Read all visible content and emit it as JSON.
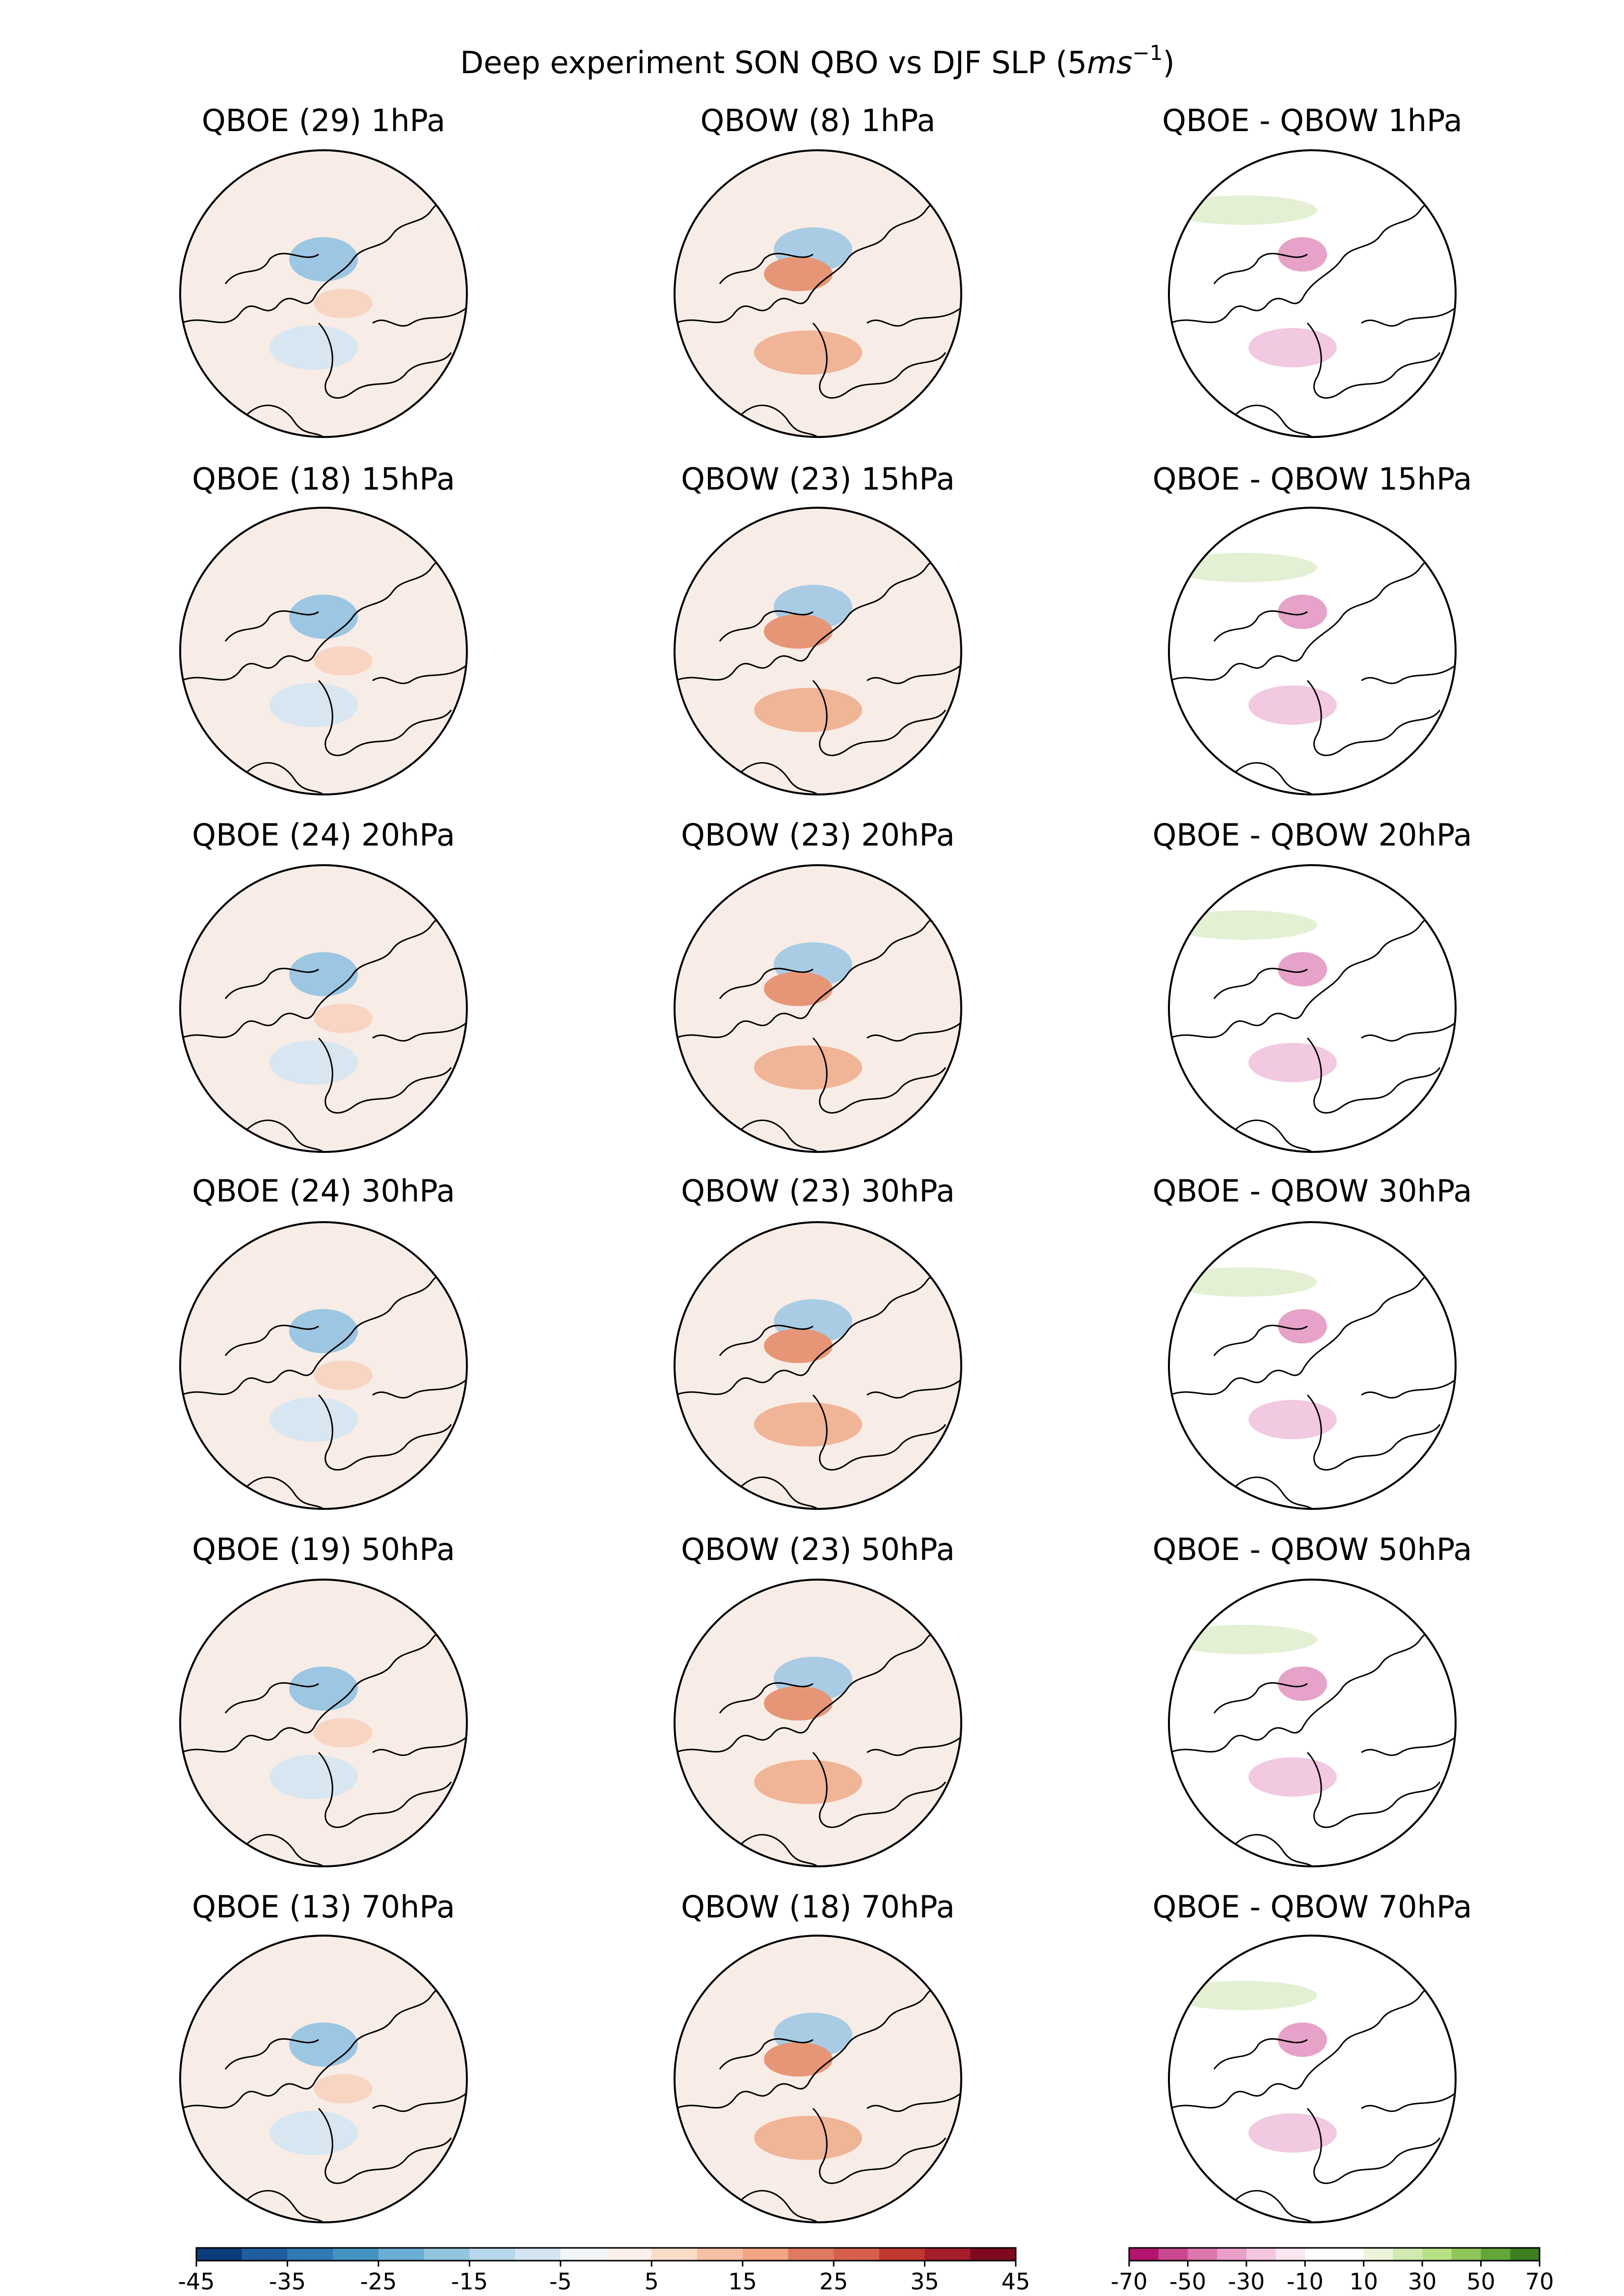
{
  "title": {
    "text": "Deep experiment SON QBO vs DJF SLP (5",
    "unit": "ms",
    "exponent": "−1",
    "close": ")"
  },
  "panels": [
    [
      "QBOE (29) 1hPa",
      "QBOW (8) 1hPa",
      "QBOE - QBOW 1hPa"
    ],
    [
      "QBOE (18) 15hPa",
      "QBOW (23) 15hPa",
      "QBOE - QBOW 15hPa"
    ],
    [
      "QBOE (24) 20hPa",
      "QBOW (23) 20hPa",
      "QBOE - QBOW 20hPa"
    ],
    [
      "QBOE (24) 30hPa",
      "QBOW (23) 30hPa",
      "QBOE - QBOW 30hPa"
    ],
    [
      "QBOE (19) 50hPa",
      "QBOW (23) 50hPa",
      "QBOE - QBOW 50hPa"
    ],
    [
      "QBOE (13) 70hPa",
      "QBOW (18) 70hPa",
      "QBOE - QBOW 70hPa"
    ]
  ],
  "colorbars": [
    {
      "range": [
        -45,
        45
      ],
      "ticks": [
        -45,
        -35,
        -25,
        -15,
        -5,
        5,
        15,
        25,
        35,
        45
      ],
      "colors": [
        "#0b3d7a",
        "#1f5fa0",
        "#2f79b5",
        "#4393c3",
        "#6aaed6",
        "#92c5de",
        "#b7d7ea",
        "#d3e6f1",
        "#f3f6f9",
        "#fbf0ea",
        "#fbdcc8",
        "#f7c0a4",
        "#f4a582",
        "#e07a5f",
        "#d6604d",
        "#c0392f",
        "#a51c2b",
        "#7f0a1e"
      ]
    },
    {
      "range": [
        -70,
        70
      ],
      "ticks": [
        -70,
        -50,
        -30,
        -10,
        10,
        30,
        50,
        70
      ],
      "colors": [
        "#b4136e",
        "#c9488f",
        "#de77ae",
        "#eba0c9",
        "#f4c7e0",
        "#fae6f0",
        "#ffffff",
        "#ffffff",
        "#ecf5dc",
        "#d0eab0",
        "#b8e186",
        "#8fc65a",
        "#64a637",
        "#3d7f1f"
      ]
    }
  ]
}
